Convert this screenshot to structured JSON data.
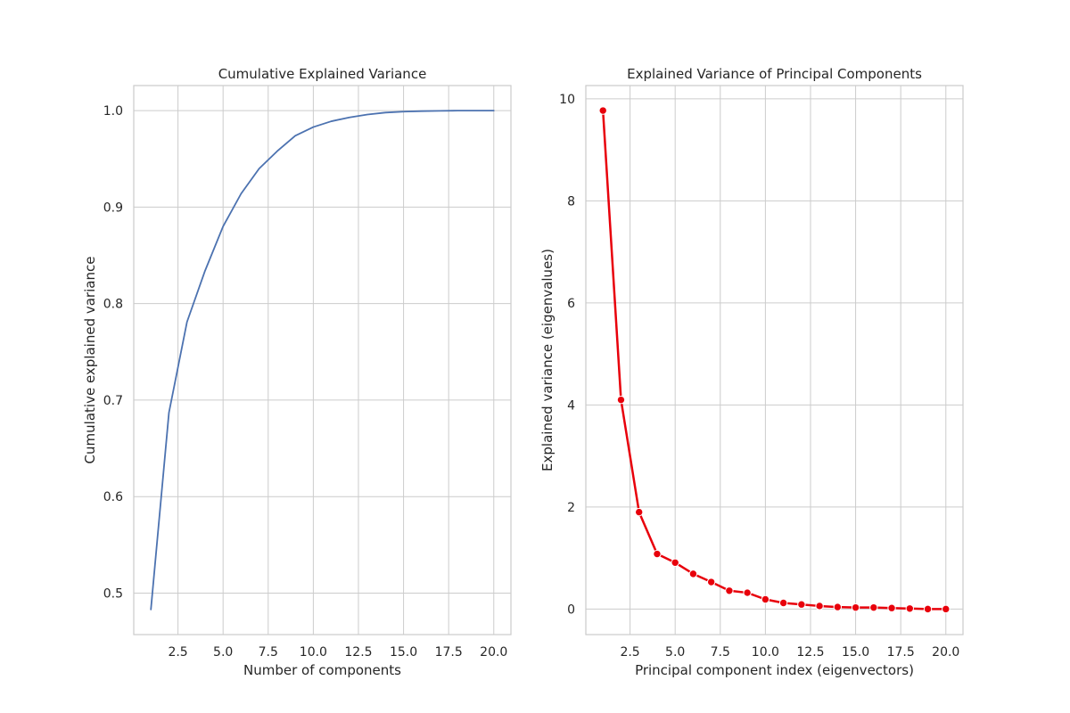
{
  "chart_data": [
    {
      "type": "line",
      "title": "Cumulative Explained Variance",
      "xlabel": "Number of components",
      "ylabel": "Cumulative explained variance",
      "xlim": [
        0.05,
        20.95
      ],
      "ylim": [
        0.457,
        1.026
      ],
      "xticks": [
        2.5,
        5.0,
        7.5,
        10.0,
        12.5,
        15.0,
        17.5,
        20.0
      ],
      "xtick_labels": [
        "2.5",
        "5.0",
        "7.5",
        "10.0",
        "12.5",
        "15.0",
        "17.5",
        "20.0"
      ],
      "yticks": [
        0.5,
        0.6,
        0.7,
        0.8,
        0.9,
        1.0
      ],
      "ytick_labels": [
        "0.5",
        "0.6",
        "0.7",
        "0.8",
        "0.9",
        "1.0"
      ],
      "grid": true,
      "line_color": "#4c72b0",
      "markers": false,
      "x": [
        1,
        2,
        3,
        4,
        5,
        6,
        7,
        8,
        9,
        10,
        11,
        12,
        13,
        14,
        15,
        16,
        17,
        18,
        19,
        20
      ],
      "y": [
        0.483,
        0.687,
        0.781,
        0.834,
        0.88,
        0.914,
        0.94,
        0.958,
        0.974,
        0.983,
        0.989,
        0.993,
        0.996,
        0.998,
        0.999,
        0.9995,
        0.9998,
        1.0,
        1.0,
        1.0
      ]
    },
    {
      "type": "line",
      "title": "Explained Variance of Principal Components",
      "xlabel": "Principal component index (eigenvectors)",
      "ylabel": "Explained variance (eigenvalues)",
      "xlim": [
        0.05,
        20.95
      ],
      "ylim": [
        -0.5,
        10.26
      ],
      "xticks": [
        2.5,
        5.0,
        7.5,
        10.0,
        12.5,
        15.0,
        17.5,
        20.0
      ],
      "xtick_labels": [
        "2.5",
        "5.0",
        "7.5",
        "10.0",
        "12.5",
        "15.0",
        "17.5",
        "20.0"
      ],
      "yticks": [
        0,
        2,
        4,
        6,
        8,
        10
      ],
      "ytick_labels": [
        "0",
        "2",
        "4",
        "6",
        "8",
        "10"
      ],
      "grid": true,
      "line_color": "#e8000b",
      "markers": true,
      "x": [
        1,
        2,
        3,
        4,
        5,
        6,
        7,
        8,
        9,
        10,
        11,
        12,
        13,
        14,
        15,
        16,
        17,
        18,
        19,
        20
      ],
      "y": [
        9.77,
        4.1,
        1.9,
        1.08,
        0.91,
        0.69,
        0.53,
        0.36,
        0.32,
        0.19,
        0.12,
        0.09,
        0.06,
        0.04,
        0.03,
        0.03,
        0.02,
        0.01,
        0.0,
        0.0
      ]
    }
  ]
}
